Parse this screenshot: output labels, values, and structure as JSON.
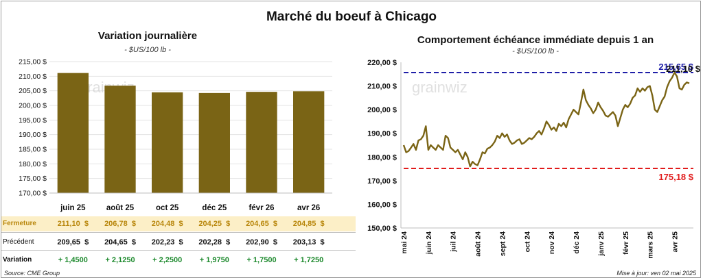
{
  "main_title": "Marché du boeuf à Chicago",
  "watermark": "grainwiz",
  "left": {
    "title": "Variation journalière",
    "unit": "- $US/100 lb -",
    "rows": {
      "fermeture_label": "Fermeture",
      "precedent_label": "Précédent",
      "variation_label": "Variation",
      "fermeture": [
        "211,10  $",
        "206,78  $",
        "204,48  $",
        "204,25  $",
        "204,65  $",
        "204,85  $"
      ],
      "precedent": [
        "209,65  $",
        "204,65  $",
        "202,23  $",
        "202,28  $",
        "202,90  $",
        "203,13  $"
      ],
      "variation": [
        "+ 1,4500",
        "+ 2,1250",
        "+ 2,2500",
        "+ 1,9750",
        "+ 1,7500",
        "+ 1,7250"
      ]
    }
  },
  "right": {
    "title": "Comportement  échéance immédiate depuis 1 an",
    "unit": "- $US/100 lb -",
    "high_label": "215,65 $",
    "low_label": "175,18 $",
    "last_label": "211,10 $"
  },
  "footer": {
    "source": "Source: CME Group",
    "updated": "Mise à jour: ven 02 mai 2025"
  },
  "colors": {
    "bar": "#7a6415",
    "line": "#7a6415",
    "high_line": "#1f1fa8",
    "low_line": "#e11b1b",
    "fermeture_bg": "#fcefc7",
    "fermeture_text": "#b8860b",
    "variation_text": "#1e8a2e"
  },
  "chart_data": [
    {
      "type": "bar",
      "title": "Variation journalière",
      "categories": [
        "juin 25",
        "août 25",
        "oct 25",
        "déc 25",
        "févr 26",
        "avr 26"
      ],
      "values": [
        211.1,
        206.78,
        204.48,
        204.25,
        204.65,
        204.85
      ],
      "y_ticks": [
        "170,00 $",
        "175,00 $",
        "180,00 $",
        "185,00 $",
        "190,00 $",
        "195,00 $",
        "200,00 $",
        "205,00 $",
        "210,00 $",
        "215,00 $"
      ],
      "ylim": [
        170,
        215
      ],
      "grid": true
    },
    {
      "type": "line",
      "title": "Comportement  échéance immédiate depuis 1 an",
      "x_ticks": [
        "mai 24",
        "juin 24",
        "juil 24",
        "août 24",
        "sept 24",
        "oct 24",
        "nov 24",
        "déc 24",
        "janv 25",
        "févr 25",
        "mars 25",
        "avr 25"
      ],
      "y_ticks": [
        "150,00 $",
        "160,00 $",
        "170,00 $",
        "180,00 $",
        "190,00 $",
        "200,00 $",
        "210,00 $",
        "220,00 $"
      ],
      "ylim": [
        150,
        220
      ],
      "high": 215.65,
      "low": 175.18,
      "x": [
        0,
        0.1,
        0.2,
        0.3,
        0.4,
        0.5,
        0.6,
        0.7,
        0.8,
        0.9,
        1.0,
        1.1,
        1.2,
        1.3,
        1.4,
        1.5,
        1.6,
        1.7,
        1.8,
        1.9,
        2.0,
        2.1,
        2.2,
        2.3,
        2.4,
        2.5,
        2.6,
        2.7,
        2.8,
        2.9,
        3.0,
        3.1,
        3.2,
        3.3,
        3.4,
        3.5,
        3.6,
        3.7,
        3.8,
        3.9,
        4.0,
        4.1,
        4.2,
        4.3,
        4.4,
        4.5,
        4.6,
        4.7,
        4.8,
        4.9,
        5.0,
        5.1,
        5.2,
        5.3,
        5.4,
        5.5,
        5.6,
        5.7,
        5.8,
        5.9,
        6.0,
        6.1,
        6.2,
        6.3,
        6.4,
        6.5,
        6.6,
        6.7,
        6.8,
        6.9,
        7.0,
        7.1,
        7.2,
        7.3,
        7.4,
        7.5,
        7.6,
        7.7,
        7.8,
        7.9,
        8.0,
        8.1,
        8.2,
        8.3,
        8.4,
        8.5,
        8.6,
        8.7,
        8.8,
        8.9,
        9.0,
        9.1,
        9.2,
        9.3,
        9.4,
        9.5,
        9.6,
        9.7,
        9.8,
        9.9,
        10.0,
        10.1,
        10.2,
        10.3,
        10.4,
        10.5,
        10.6,
        10.7,
        10.8,
        10.9,
        11.0,
        11.1,
        11.2,
        11.3,
        11.4,
        11.5,
        11.6
      ],
      "values": [
        185.0,
        182.0,
        182.5,
        184.0,
        185.5,
        183.0,
        187.0,
        187.5,
        189.0,
        193.0,
        183.0,
        185.0,
        184.0,
        183.0,
        185.0,
        184.0,
        183.0,
        189.0,
        188.0,
        184.0,
        183.0,
        182.0,
        183.0,
        181.0,
        179.0,
        182.0,
        180.0,
        176.0,
        178.0,
        177.0,
        176.5,
        179.0,
        182.0,
        181.5,
        183.5,
        184.0,
        185.0,
        186.5,
        189.0,
        188.0,
        190.0,
        188.5,
        189.5,
        187.0,
        185.5,
        186.0,
        187.0,
        187.5,
        185.5,
        186.0,
        187.0,
        188.0,
        187.5,
        188.5,
        190.0,
        191.0,
        189.5,
        192.0,
        195.0,
        193.5,
        191.5,
        192.5,
        191.0,
        194.0,
        193.0,
        194.5,
        192.5,
        196.0,
        198.0,
        200.0,
        199.0,
        198.0,
        203.0,
        208.5,
        204.0,
        202.0,
        200.5,
        198.5,
        200.0,
        203.0,
        201.0,
        199.5,
        197.5,
        197.0,
        198.0,
        199.0,
        197.5,
        193.0,
        196.5,
        200.0,
        202.0,
        201.0,
        202.5,
        205.0,
        206.0,
        209.0,
        207.5,
        209.0,
        208.0,
        209.5,
        210.0,
        206.0,
        200.0,
        199.0,
        201.5,
        204.0,
        205.5,
        209.5,
        212.0,
        213.5,
        215.65,
        214.0,
        209.0,
        208.5,
        210.5,
        211.5,
        211.1
      ]
    }
  ]
}
